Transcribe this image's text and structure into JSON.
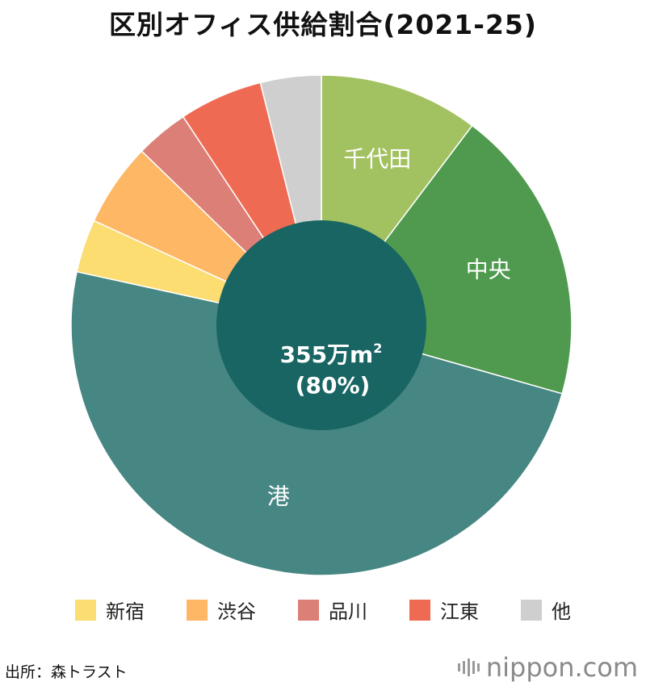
{
  "title": "区別オフィス供給割合(2021-25)",
  "chart_data": {
    "type": "pie",
    "title": "区別オフィス供給割合(2021-25)",
    "slices": [
      {
        "name": "千代田",
        "value": 10.5,
        "color": "#a2c261",
        "labeled": true
      },
      {
        "name": "中央",
        "value": 19.5,
        "color": "#4f9a4f",
        "labeled": true
      },
      {
        "name": "港",
        "value": 50.0,
        "color": "#468683",
        "labeled": true
      },
      {
        "name": "新宿",
        "value": 3.5,
        "color": "#fbdd72",
        "labeled": false
      },
      {
        "name": "渋谷",
        "value": 5.5,
        "color": "#fdb765",
        "labeled": false
      },
      {
        "name": "品川",
        "value": 3.5,
        "color": "#dc7f77",
        "labeled": false
      },
      {
        "name": "江東",
        "value": 5.5,
        "color": "#ef6a52",
        "labeled": false
      },
      {
        "name": "他",
        "value": 4.0,
        "color": "#cfcfcf",
        "labeled": false
      }
    ],
    "center": {
      "line1": "355万m",
      "sup": "2",
      "line2": "(80%)",
      "color": "#186563"
    },
    "legend": [
      "新宿",
      "渋谷",
      "品川",
      "江東",
      "他"
    ],
    "legend_placement": "bottom"
  },
  "source": "出所：森トラスト",
  "brand": "nippon.com"
}
